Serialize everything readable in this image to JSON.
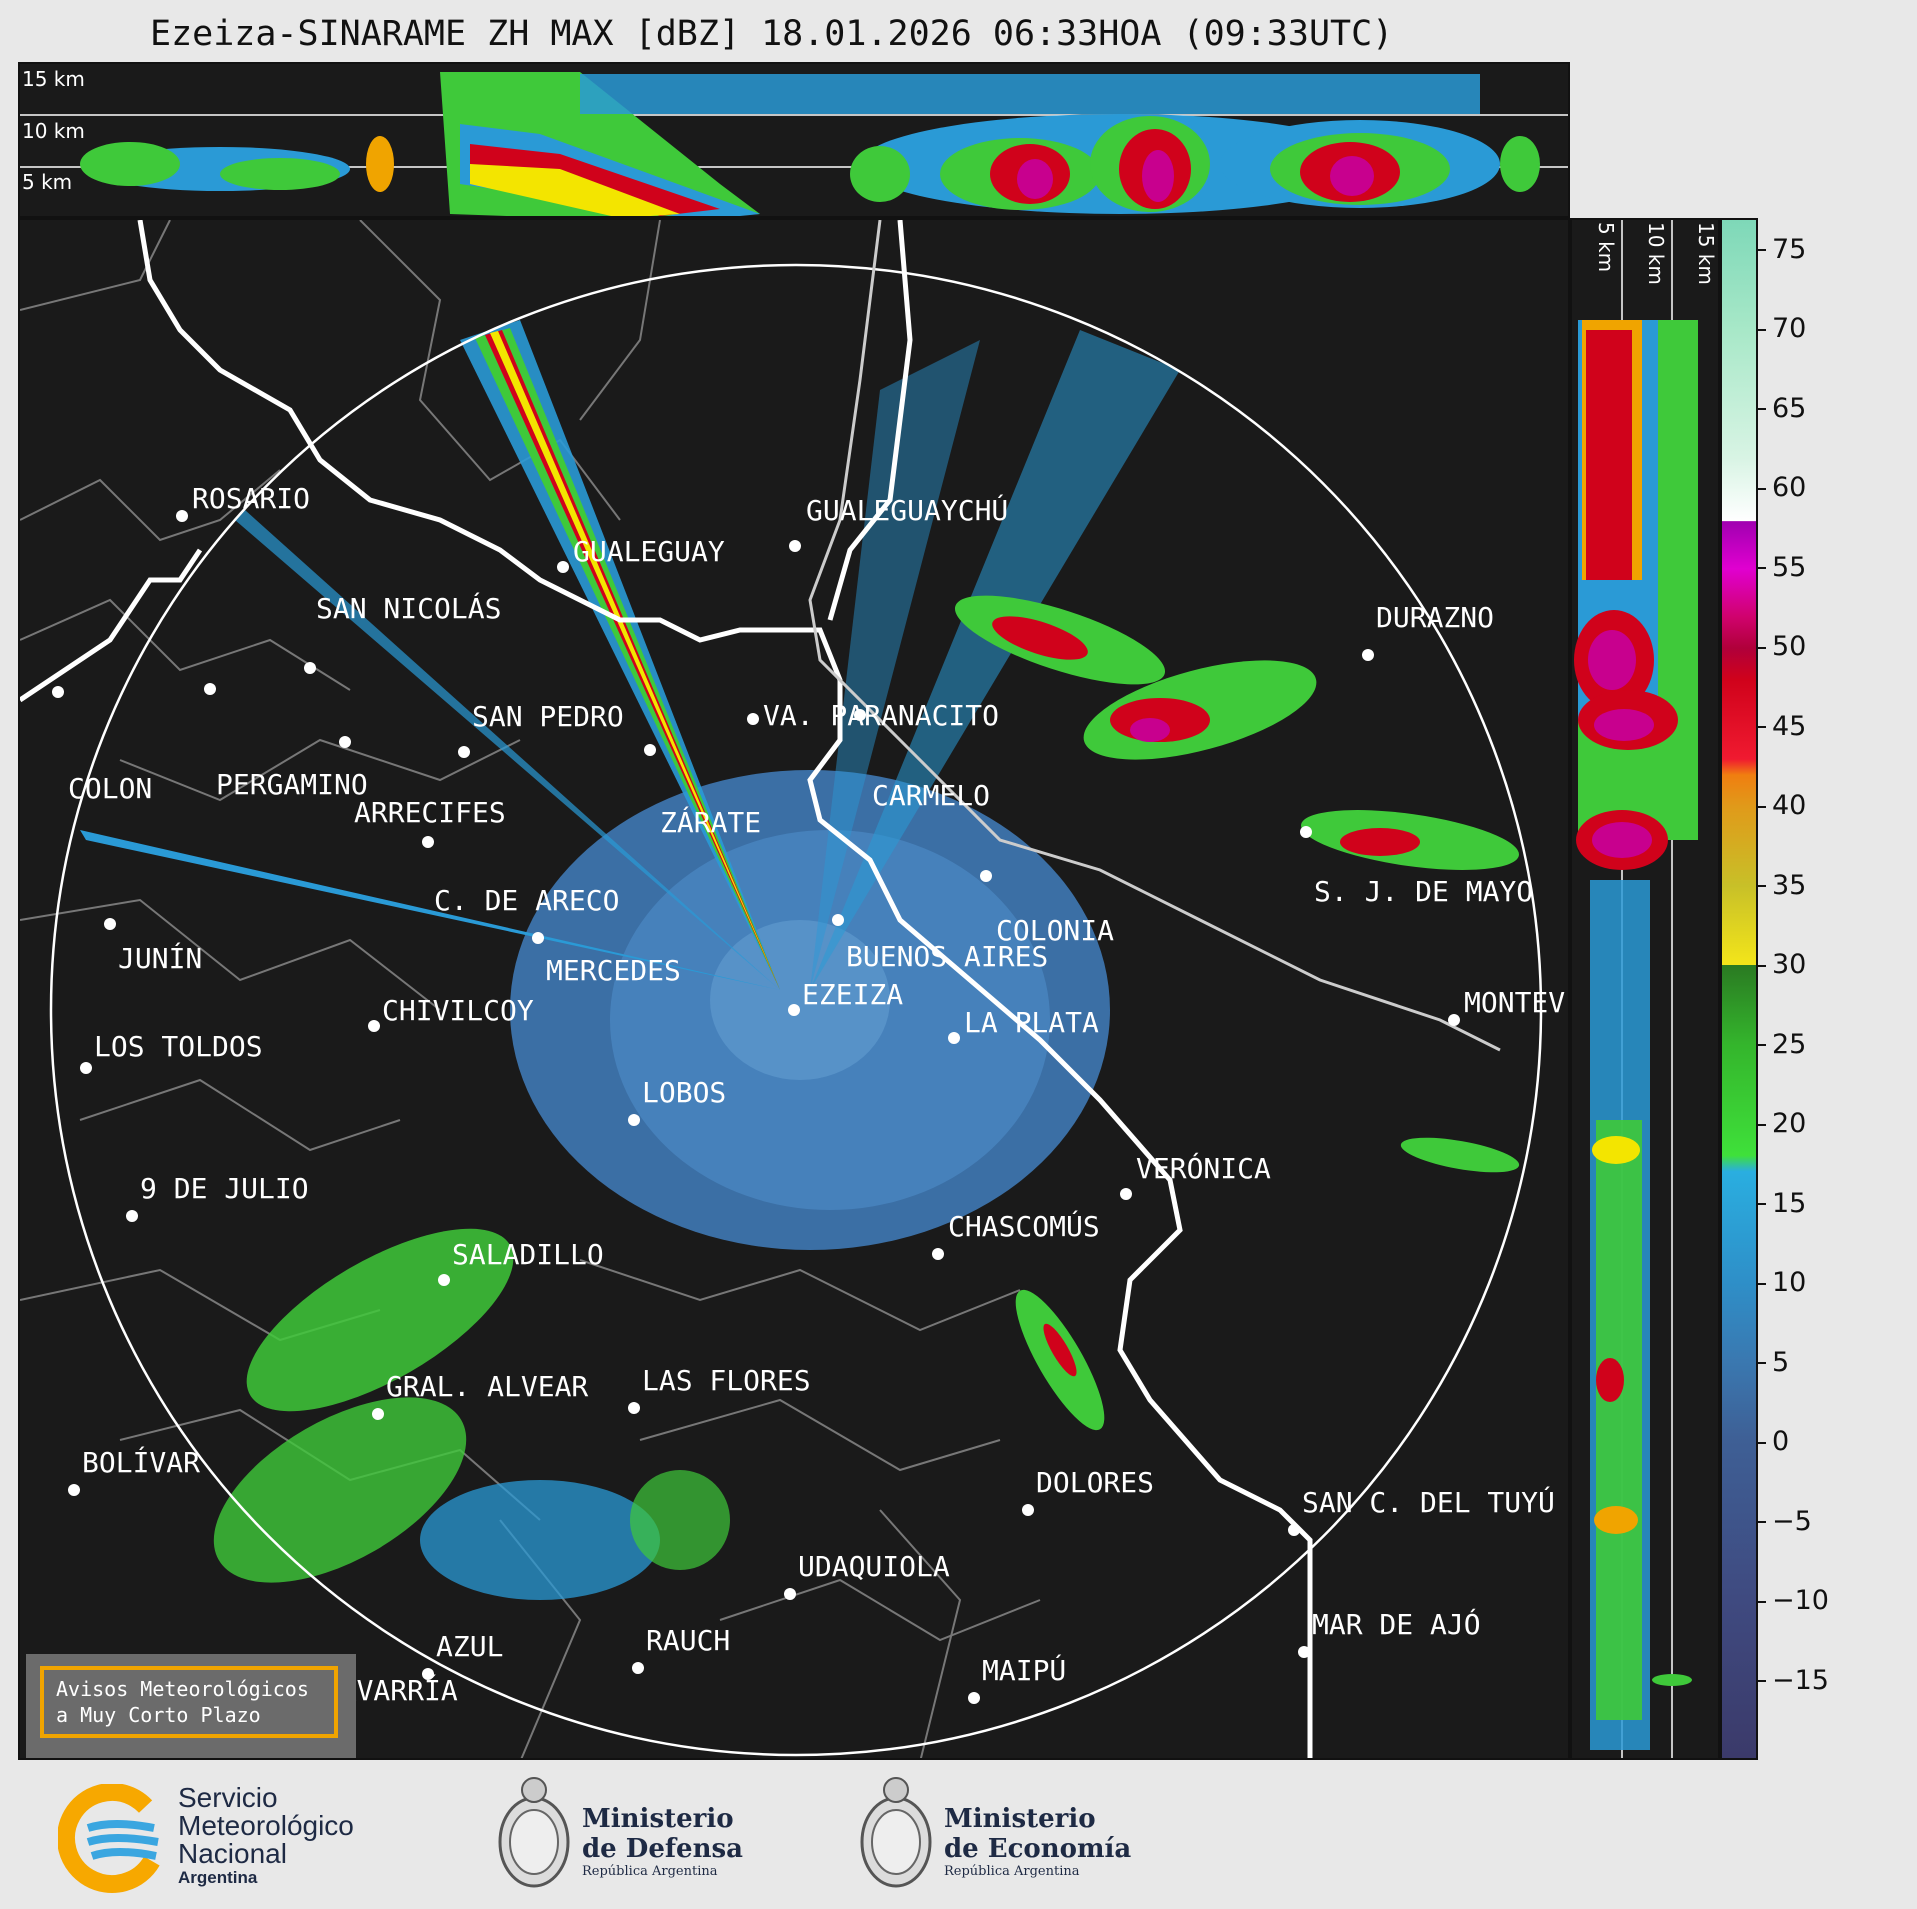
{
  "title": "Ezeiza-SINARAME ZH MAX [dBZ] 18.01.2026 06:33HOA (09:33UTC)",
  "height_labels": [
    "15 km",
    "10 km",
    "5 km"
  ],
  "colorbar": {
    "ticks": [
      "75",
      "70",
      "65",
      "60",
      "55",
      "50",
      "45",
      "40",
      "35",
      "30",
      "25",
      "20",
      "15",
      "10",
      "5",
      "0",
      "−5",
      "−10",
      "−15"
    ],
    "range": [
      -20,
      77
    ]
  },
  "cities": [
    {
      "name": "ROSARIO"
    },
    {
      "name": "GUALEGUAYCHÚ"
    },
    {
      "name": "GUALEGUAY"
    },
    {
      "name": "SAN NICOLÁS"
    },
    {
      "name": "DURAZNO"
    },
    {
      "name": "SAN PEDRO"
    },
    {
      "name": "VA. PARANACITO"
    },
    {
      "name": "COLON"
    },
    {
      "name": "PERGAMINO"
    },
    {
      "name": "CARMELO"
    },
    {
      "name": "ARRECIFES"
    },
    {
      "name": "ZÁRATE"
    },
    {
      "name": "C. DE ARECO"
    },
    {
      "name": "S. J. DE MAYO"
    },
    {
      "name": "COLONIA"
    },
    {
      "name": "JUNÍN"
    },
    {
      "name": "BUENOS AIRES"
    },
    {
      "name": "MERCEDES"
    },
    {
      "name": "EZEIZA"
    },
    {
      "name": "MONTEV"
    },
    {
      "name": "CHIVILCOY"
    },
    {
      "name": "LA PLATA"
    },
    {
      "name": "LOS TOLDOS"
    },
    {
      "name": "LOBOS"
    },
    {
      "name": "VERÓNICA"
    },
    {
      "name": "9 DE JULIO"
    },
    {
      "name": "CHASCOMÚS"
    },
    {
      "name": "SALADILLO"
    },
    {
      "name": "GRAL. ALVEAR"
    },
    {
      "name": "LAS FLORES"
    },
    {
      "name": "BOLÍVAR"
    },
    {
      "name": "DOLORES"
    },
    {
      "name": "SAN C. DEL TUYÚ"
    },
    {
      "name": "UDAQUIOLA"
    },
    {
      "name": "AZUL"
    },
    {
      "name": "RAUCH"
    },
    {
      "name": "MAR DE AJÓ"
    },
    {
      "name": "OLAVARRÍA"
    },
    {
      "name": "MAIPÚ"
    }
  ],
  "aviso": {
    "line1": "Avisos Meteorológicos",
    "line2": "a Muy Corto Plazo"
  },
  "logos": {
    "smn": {
      "line1": "Servicio",
      "line2": "Meteorológico",
      "line3": "Nacional",
      "line4": "Argentina"
    },
    "defensa": {
      "line1": "Ministerio",
      "line2": "de Defensa",
      "line3": "República Argentina"
    },
    "economia": {
      "line1": "Ministerio",
      "line2": "de Economía",
      "line3": "República Argentina"
    }
  },
  "colors": {
    "background": "#1a1a1a",
    "echo_base": "#3f79b5",
    "strong": "#d0021b",
    "accent": "#f0a400"
  }
}
